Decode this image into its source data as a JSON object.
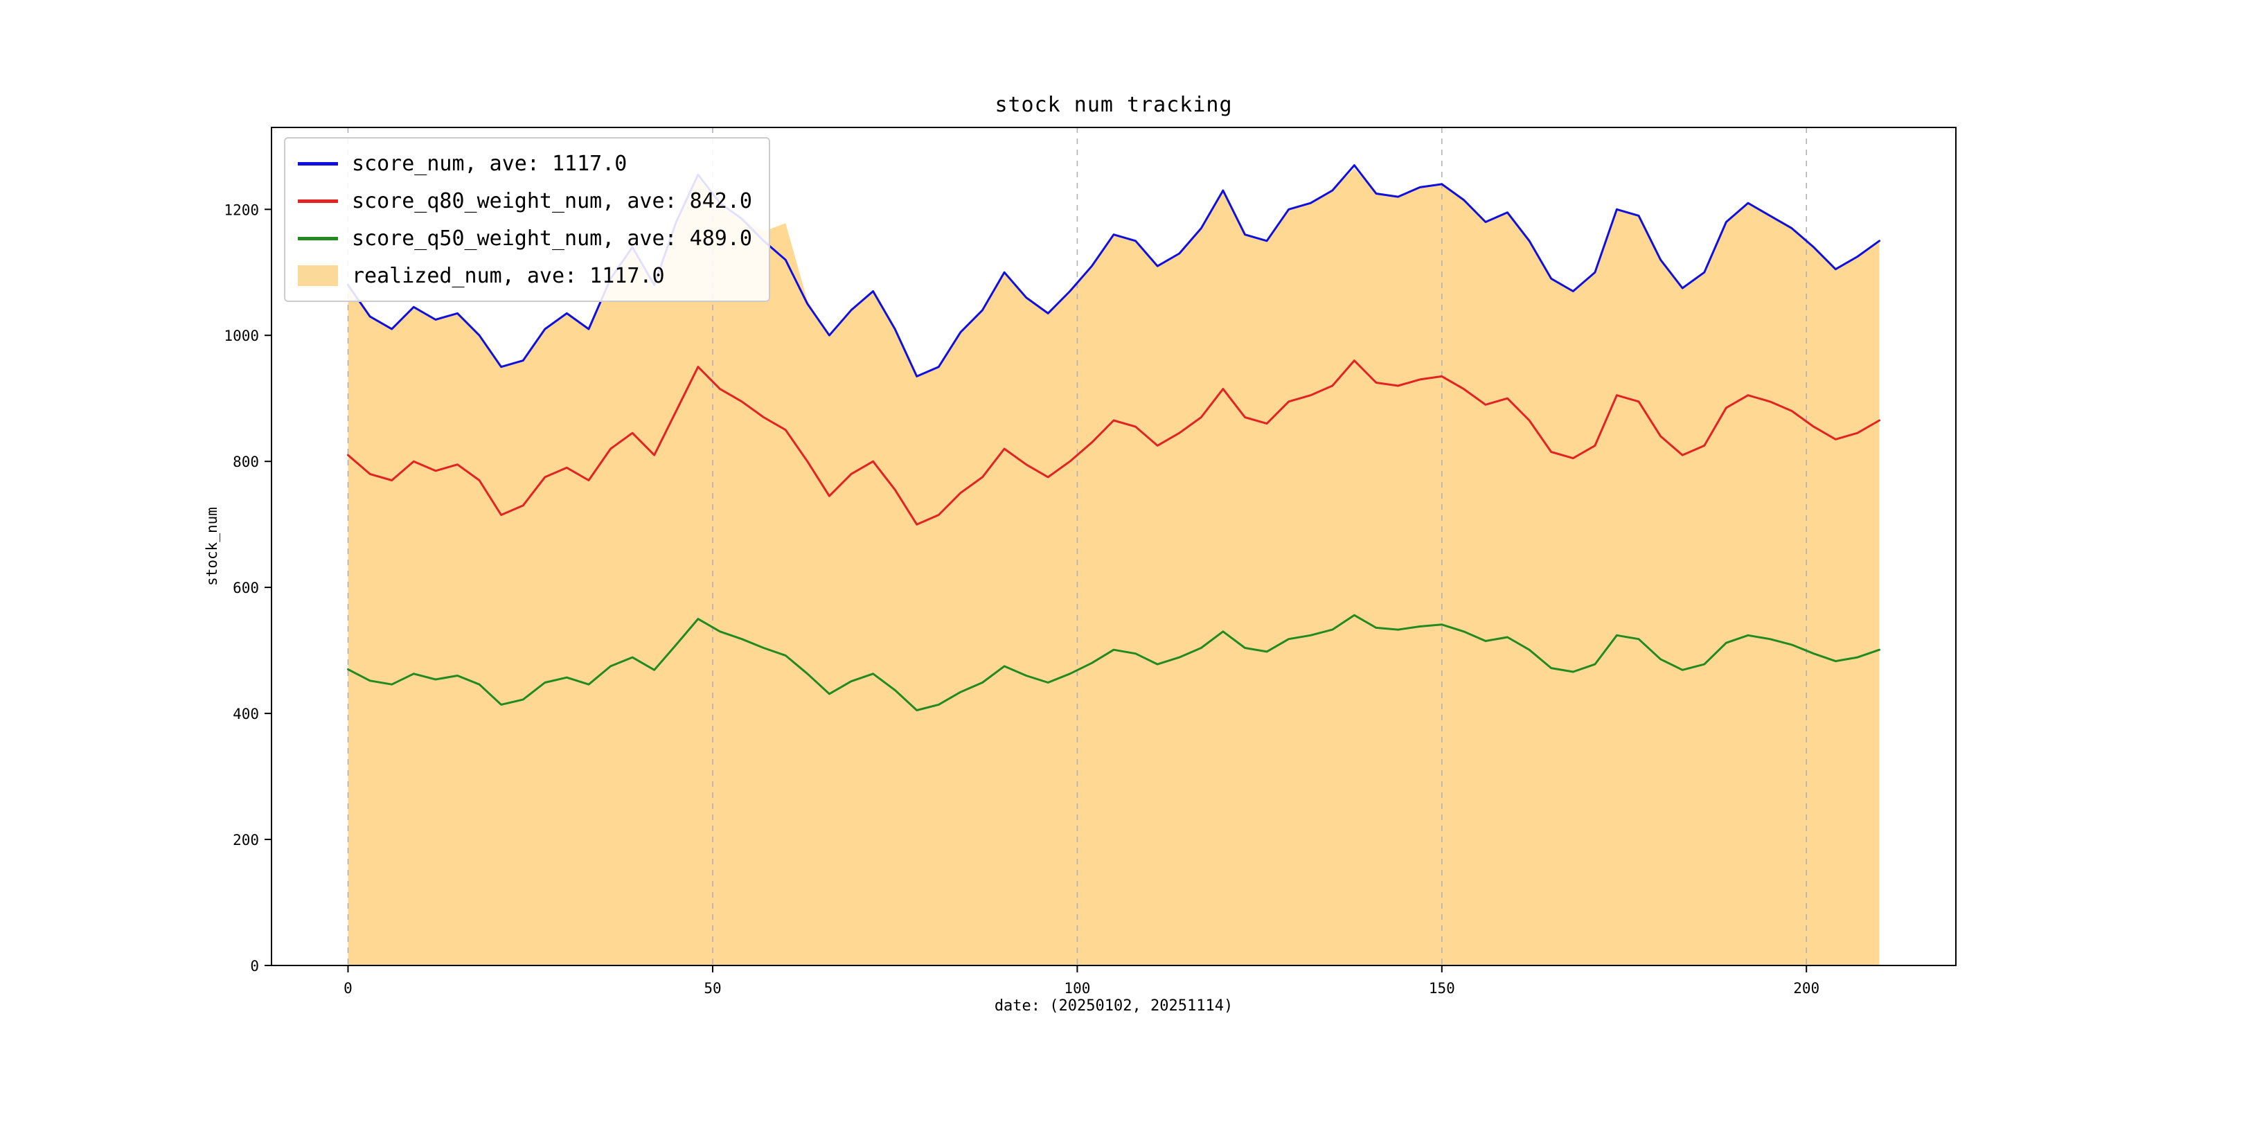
{
  "title": "stock num tracking",
  "xlabel": "date: (20250102, 20251114)",
  "ylabel": "stock_num",
  "legend": {
    "entries": [
      {
        "label": "score_num, ave: 1117.0",
        "type": "line",
        "swatch_color": "#0f0fe0"
      },
      {
        "label": "score_q80_weight_num, ave: 842.0",
        "type": "line",
        "swatch_color": "#e32222"
      },
      {
        "label": "score_q50_weight_num, ave: 489.0",
        "type": "line",
        "swatch_color": "#218a21"
      },
      {
        "label": "realized_num, ave: 1117.0",
        "type": "fill",
        "swatch_color": "#fbd998"
      }
    ]
  },
  "colors": {
    "blue_line": "#0f0fe0",
    "red_line": "#e32222",
    "green_line": "#218a21",
    "fill": "#ffa500",
    "gridline": "#b0b0c0",
    "axes_border": "#000000"
  },
  "chart_data": {
    "type": "line",
    "title": "stock num tracking",
    "xlabel": "date: (20250102, 20251114)",
    "ylabel": "stock_num",
    "xlim": [
      -10.5,
      220.5
    ],
    "ylim": [
      0,
      1330
    ],
    "x_ticks": [
      0,
      50,
      100,
      150,
      200
    ],
    "y_ticks": [
      0,
      200,
      400,
      600,
      800,
      1000,
      1200
    ],
    "grid": "vertical-dashed",
    "legend_position": "upper-left",
    "x": [
      0,
      3,
      6,
      9,
      12,
      15,
      18,
      21,
      24,
      27,
      30,
      33,
      36,
      39,
      42,
      45,
      48,
      51,
      54,
      57,
      60,
      63,
      66,
      69,
      72,
      75,
      78,
      81,
      84,
      87,
      90,
      93,
      96,
      99,
      102,
      105,
      108,
      111,
      114,
      117,
      120,
      123,
      126,
      129,
      132,
      135,
      138,
      141,
      144,
      147,
      150,
      153,
      156,
      159,
      162,
      165,
      168,
      171,
      174,
      177,
      180,
      183,
      186,
      189,
      192,
      195,
      198,
      201,
      204,
      207,
      210
    ],
    "series": [
      {
        "name": "score_num",
        "ave": 1117.0,
        "color": "#0f0fe0",
        "values": [
          1080,
          1030,
          1010,
          1045,
          1025,
          1035,
          1000,
          950,
          960,
          1010,
          1035,
          1010,
          1090,
          1140,
          1080,
          1180,
          1255,
          1210,
          1185,
          1150,
          1120,
          1050,
          1000,
          1040,
          1070,
          1010,
          935,
          950,
          1005,
          1040,
          1100,
          1060,
          1035,
          1070,
          1110,
          1160,
          1150,
          1110,
          1130,
          1170,
          1230,
          1160,
          1150,
          1200,
          1210,
          1230,
          1270,
          1225,
          1220,
          1235,
          1240,
          1215,
          1180,
          1195,
          1150,
          1090,
          1070,
          1100,
          1200,
          1190,
          1120,
          1075,
          1100,
          1180,
          1210,
          1190,
          1170,
          1140,
          1105,
          1125,
          1150
        ]
      },
      {
        "name": "score_q80_weight_num",
        "ave": 842.0,
        "color": "#e32222",
        "values": [
          810,
          780,
          770,
          800,
          785,
          795,
          770,
          715,
          730,
          775,
          790,
          770,
          820,
          845,
          810,
          880,
          950,
          915,
          895,
          870,
          850,
          800,
          745,
          780,
          800,
          755,
          700,
          715,
          750,
          775,
          820,
          795,
          775,
          800,
          830,
          865,
          855,
          825,
          845,
          870,
          915,
          870,
          860,
          895,
          905,
          920,
          960,
          925,
          920,
          930,
          935,
          915,
          890,
          900,
          865,
          815,
          805,
          825,
          905,
          895,
          840,
          810,
          825,
          885,
          905,
          895,
          880,
          855,
          835,
          845,
          865
        ]
      },
      {
        "name": "score_q50_weight_num",
        "ave": 489.0,
        "color": "#218a21",
        "values": [
          470,
          452,
          446,
          463,
          454,
          460,
          446,
          414,
          422,
          449,
          457,
          446,
          475,
          489,
          469,
          509,
          550,
          530,
          518,
          504,
          492,
          463,
          431,
          451,
          463,
          437,
          405,
          414,
          434,
          449,
          475,
          460,
          449,
          463,
          480,
          501,
          495,
          478,
          489,
          504,
          530,
          504,
          498,
          518,
          524,
          533,
          556,
          536,
          533,
          538,
          541,
          530,
          515,
          521,
          501,
          472,
          466,
          478,
          524,
          518,
          486,
          469,
          478,
          512,
          524,
          518,
          509,
          495,
          483,
          489,
          501
        ]
      },
      {
        "name": "realized_num",
        "ave": 1117.0,
        "color": "#ffa500",
        "fill": true,
        "fill_opacity": 0.42,
        "values": [
          1080,
          1030,
          1010,
          1045,
          1025,
          1035,
          1000,
          950,
          960,
          1010,
          1035,
          1010,
          1090,
          1140,
          1080,
          1180,
          1250,
          1210,
          1185,
          1165,
          1178,
          1055,
          1000,
          1040,
          1070,
          1010,
          935,
          950,
          1005,
          1040,
          1100,
          1060,
          1035,
          1070,
          1110,
          1160,
          1150,
          1110,
          1130,
          1170,
          1230,
          1160,
          1150,
          1200,
          1210,
          1230,
          1265,
          1225,
          1220,
          1235,
          1240,
          1215,
          1180,
          1195,
          1150,
          1090,
          1070,
          1100,
          1200,
          1190,
          1120,
          1075,
          1100,
          1180,
          1210,
          1190,
          1170,
          1140,
          1105,
          1125,
          1150
        ]
      }
    ]
  }
}
